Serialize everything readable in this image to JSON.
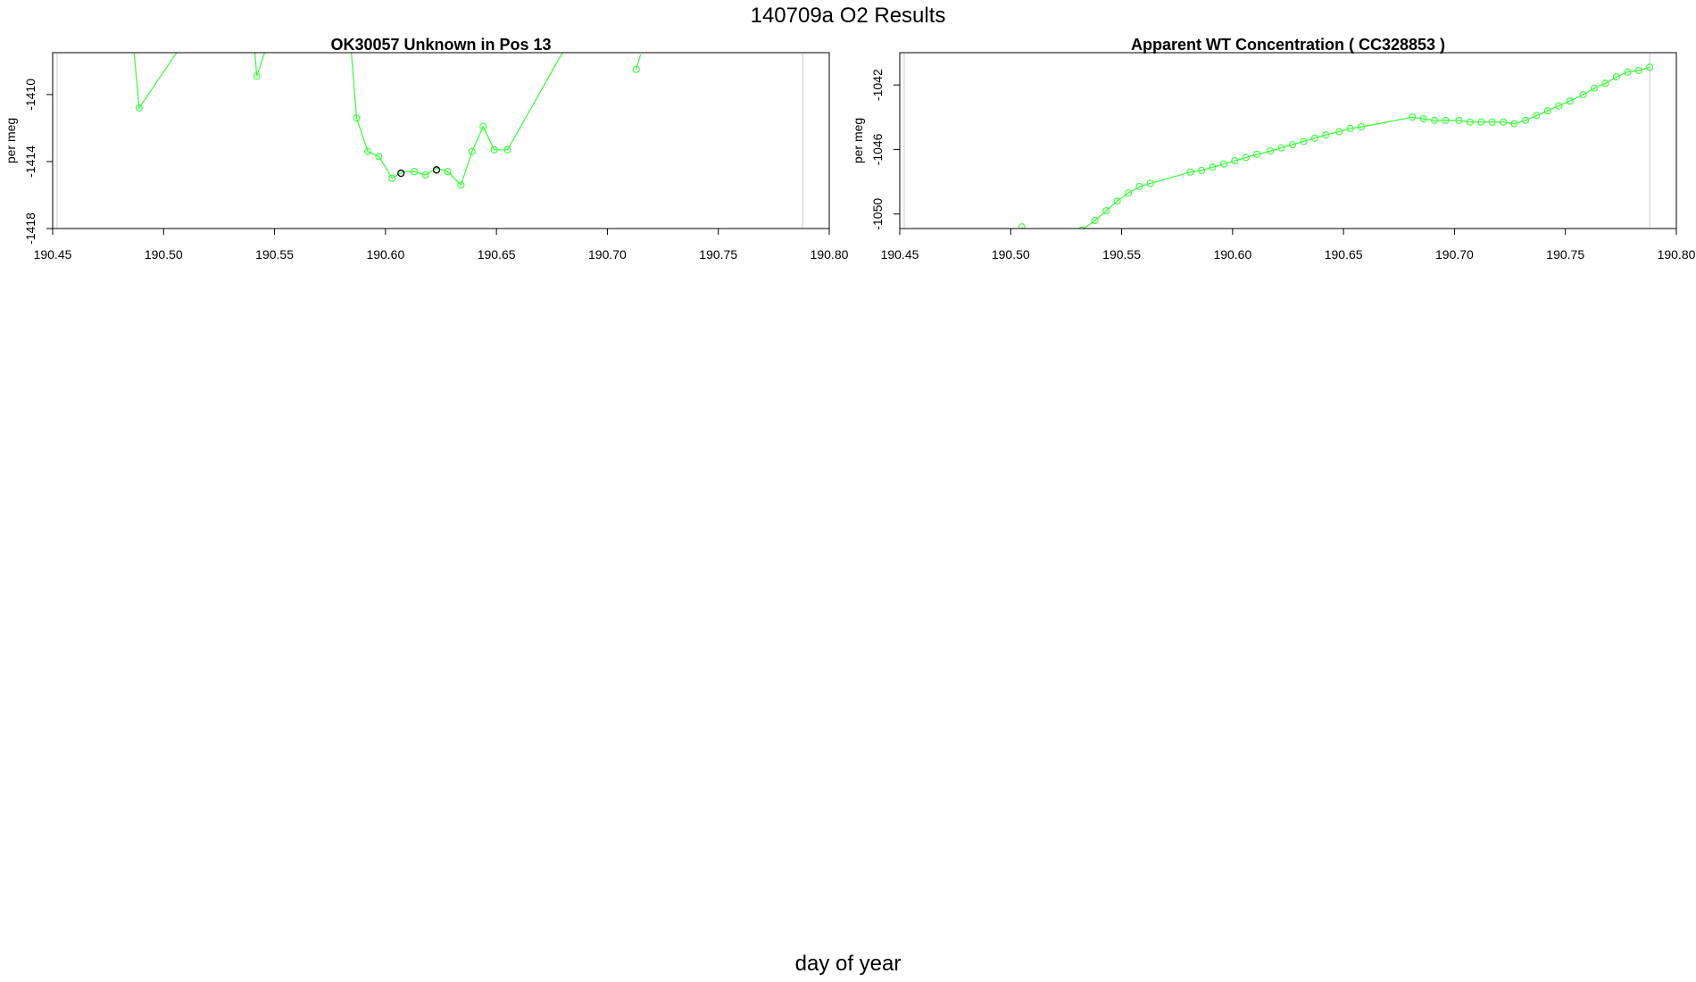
{
  "title": "140709a  O2 Results",
  "xlabel": "day of year",
  "colors": {
    "series": "#33ff33",
    "highlight": "#000000",
    "frame": "#000000",
    "vline": "#cccccc"
  },
  "chart_data": [
    {
      "type": "line",
      "title": "OK30057    Unknown in Pos 13",
      "ylabel": "per meg",
      "xlim": [
        190.45,
        190.8
      ],
      "ylim": [
        -1418,
        -1407.5
      ],
      "xticks": [
        190.45,
        190.5,
        190.55,
        190.6,
        190.65,
        190.7,
        190.75,
        190.8
      ],
      "xtick_labels": [
        "190.45",
        "190.50",
        "190.55",
        "190.60",
        "190.65",
        "190.70",
        "190.75",
        "190.80"
      ],
      "yticks": [
        -1410,
        -1414,
        -1418
      ],
      "ytick_labels": [
        "-1410",
        "-1414",
        "-1418"
      ],
      "vlines": [
        190.452,
        190.788
      ],
      "series": [
        {
          "segments": [
            [
              [
                190.486,
                -1406.5
              ],
              [
                190.489,
                -1410.8
              ],
              [
                190.511,
                -1406.5
              ]
            ],
            [
              [
                190.541,
                -1407.3
              ],
              [
                190.542,
                -1408.9
              ],
              [
                190.548,
                -1406.5
              ]
            ],
            [
              [
                190.584,
                -1406.5
              ],
              [
                190.587,
                -1411.4
              ],
              [
                190.592,
                -1413.4
              ],
              [
                190.597,
                -1413.7
              ],
              [
                190.603,
                -1415.0
              ],
              [
                190.608,
                -1414.6
              ],
              [
                190.613,
                -1414.6
              ],
              [
                190.618,
                -1414.8
              ],
              [
                190.623,
                -1414.4
              ],
              [
                190.628,
                -1414.6
              ],
              [
                190.634,
                -1415.4
              ],
              [
                190.639,
                -1413.4
              ],
              [
                190.644,
                -1411.9
              ],
              [
                190.649,
                -1413.3
              ],
              [
                190.655,
                -1413.3
              ],
              [
                190.684,
                -1406.5
              ]
            ],
            [
              [
                190.713,
                -1408.5
              ],
              [
                190.715,
                -1407.6
              ]
            ]
          ],
          "points": [
            [
              190.489,
              -1410.8
            ],
            [
              190.542,
              -1408.9
            ],
            [
              190.587,
              -1411.4
            ],
            [
              190.592,
              -1413.4
            ],
            [
              190.597,
              -1413.7
            ],
            [
              190.603,
              -1415.0
            ],
            [
              190.613,
              -1414.6
            ],
            [
              190.618,
              -1414.8
            ],
            [
              190.628,
              -1414.6
            ],
            [
              190.634,
              -1415.4
            ],
            [
              190.639,
              -1413.4
            ],
            [
              190.644,
              -1411.9
            ],
            [
              190.649,
              -1413.3
            ],
            [
              190.655,
              -1413.3
            ],
            [
              190.713,
              -1408.5
            ]
          ],
          "highlight_points": [
            [
              190.607,
              -1414.7
            ],
            [
              190.623,
              -1414.5
            ]
          ]
        }
      ]
    },
    {
      "type": "line",
      "title": "Apparent WT Concentration ( CC328853 )",
      "ylabel": "per meg",
      "xlim": [
        190.45,
        190.8
      ],
      "ylim": [
        -1050.9,
        -1040.0
      ],
      "xticks": [
        190.45,
        190.5,
        190.55,
        190.6,
        190.65,
        190.7,
        190.75,
        190.8
      ],
      "xtick_labels": [
        "190.45",
        "190.50",
        "190.55",
        "190.60",
        "190.65",
        "190.70",
        "190.75",
        "190.80"
      ],
      "yticks": [
        -1042,
        -1046,
        -1050
      ],
      "ytick_labels": [
        "-1042",
        "-1046",
        "-1050"
      ],
      "vlines": [
        190.452,
        190.788
      ],
      "series": [
        {
          "segments": [
            [
              [
                190.505,
                -1050.8
              ],
              [
                190.507,
                -1051.2
              ]
            ],
            [
              [
                190.532,
                -1051.0
              ],
              [
                190.538,
                -1050.4
              ],
              [
                190.543,
                -1049.8
              ],
              [
                190.548,
                -1049.2
              ],
              [
                190.553,
                -1048.7
              ],
              [
                190.558,
                -1048.3
              ],
              [
                190.563,
                -1048.1
              ],
              [
                190.581,
                -1047.4
              ],
              [
                190.586,
                -1047.3
              ],
              [
                190.591,
                -1047.1
              ],
              [
                190.596,
                -1046.9
              ],
              [
                190.601,
                -1046.7
              ],
              [
                190.606,
                -1046.5
              ],
              [
                190.611,
                -1046.3
              ],
              [
                190.617,
                -1046.1
              ],
              [
                190.622,
                -1045.9
              ],
              [
                190.627,
                -1045.7
              ],
              [
                190.632,
                -1045.5
              ],
              [
                190.637,
                -1045.3
              ],
              [
                190.642,
                -1045.1
              ],
              [
                190.648,
                -1044.9
              ],
              [
                190.653,
                -1044.7
              ],
              [
                190.658,
                -1044.6
              ],
              [
                190.681,
                -1044.0
              ],
              [
                190.686,
                -1044.1
              ],
              [
                190.691,
                -1044.2
              ],
              [
                190.696,
                -1044.2
              ],
              [
                190.702,
                -1044.2
              ],
              [
                190.707,
                -1044.3
              ],
              [
                190.712,
                -1044.3
              ],
              [
                190.717,
                -1044.3
              ],
              [
                190.722,
                -1044.3
              ],
              [
                190.727,
                -1044.4
              ],
              [
                190.732,
                -1044.2
              ],
              [
                190.737,
                -1043.9
              ],
              [
                190.742,
                -1043.6
              ],
              [
                190.747,
                -1043.3
              ],
              [
                190.752,
                -1043.0
              ],
              [
                190.758,
                -1042.6
              ],
              [
                190.763,
                -1042.2
              ],
              [
                190.768,
                -1041.9
              ],
              [
                190.773,
                -1041.5
              ],
              [
                190.778,
                -1041.2
              ],
              [
                190.783,
                -1041.1
              ],
              [
                190.788,
                -1040.9
              ]
            ]
          ],
          "points": [
            [
              190.505,
              -1050.8
            ],
            [
              190.532,
              -1051.0
            ],
            [
              190.538,
              -1050.4
            ],
            [
              190.543,
              -1049.8
            ],
            [
              190.548,
              -1049.2
            ],
            [
              190.553,
              -1048.7
            ],
            [
              190.558,
              -1048.3
            ],
            [
              190.563,
              -1048.1
            ],
            [
              190.581,
              -1047.4
            ],
            [
              190.586,
              -1047.3
            ],
            [
              190.591,
              -1047.1
            ],
            [
              190.596,
              -1046.9
            ],
            [
              190.601,
              -1046.7
            ],
            [
              190.606,
              -1046.5
            ],
            [
              190.611,
              -1046.3
            ],
            [
              190.617,
              -1046.1
            ],
            [
              190.622,
              -1045.9
            ],
            [
              190.627,
              -1045.7
            ],
            [
              190.632,
              -1045.5
            ],
            [
              190.637,
              -1045.3
            ],
            [
              190.642,
              -1045.1
            ],
            [
              190.648,
              -1044.9
            ],
            [
              190.653,
              -1044.7
            ],
            [
              190.658,
              -1044.6
            ],
            [
              190.681,
              -1044.0
            ],
            [
              190.686,
              -1044.1
            ],
            [
              190.691,
              -1044.2
            ],
            [
              190.696,
              -1044.2
            ],
            [
              190.702,
              -1044.2
            ],
            [
              190.707,
              -1044.3
            ],
            [
              190.712,
              -1044.3
            ],
            [
              190.717,
              -1044.3
            ],
            [
              190.722,
              -1044.3
            ],
            [
              190.727,
              -1044.4
            ],
            [
              190.732,
              -1044.2
            ],
            [
              190.737,
              -1043.9
            ],
            [
              190.742,
              -1043.6
            ],
            [
              190.747,
              -1043.3
            ],
            [
              190.752,
              -1043.0
            ],
            [
              190.758,
              -1042.6
            ],
            [
              190.763,
              -1042.2
            ],
            [
              190.768,
              -1041.9
            ],
            [
              190.773,
              -1041.5
            ],
            [
              190.778,
              -1041.2
            ],
            [
              190.783,
              -1041.1
            ],
            [
              190.788,
              -1040.9
            ]
          ],
          "highlight_points": []
        }
      ]
    }
  ]
}
